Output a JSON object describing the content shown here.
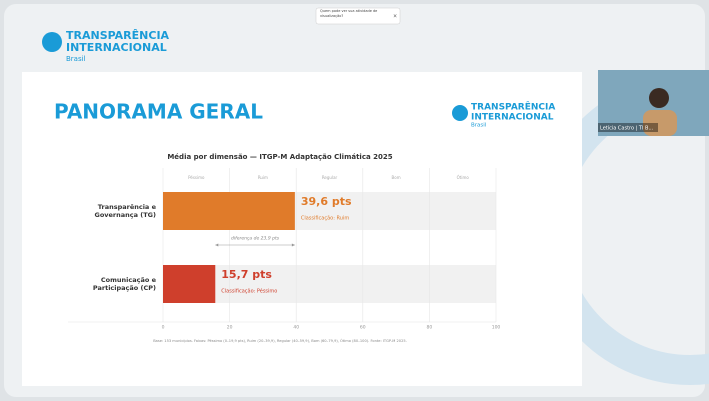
{
  "app": {
    "logo": {
      "name": "TRANSPARÊNCIA",
      "name2": "INTERNACIONAL",
      "country": "Brasil"
    },
    "notification": "Quem pode ver sua atividade de visualização?",
    "participant": "Letícia Castro | TI B..."
  },
  "slide": {
    "title": "PANORAMA GERAL",
    "logo": {
      "name": "TRANSPARÊNCIA",
      "name2": "INTERNACIONAL",
      "country": "Brasil"
    },
    "footnote": "Base: 153 municípios. Faixas: Péssimo (0–19,9 pts), Ruim (20–39,9), Regular (40–59,9), Bom (60–79,9), Ótimo (80–100). Fonte: ITGP-M 2025."
  },
  "chart_data": {
    "type": "hbar",
    "title": "Média por dimensão — ITGP-M Adaptação Climática 2025",
    "categories": [
      "Transparência e Governança (TG)",
      "Comunicação e Participação (CP)"
    ],
    "values": [
      39.6,
      15.7
    ],
    "value_labels": [
      "39,6 pts",
      "15,7 pts"
    ],
    "colors": [
      "#e07b2a",
      "#cf3f2c"
    ],
    "classification_labels": [
      "Classificação: Ruim",
      "Classificação: Péssimo"
    ],
    "bands": [
      "Péssimo",
      "Ruim",
      "Regular",
      "Bom",
      "Ótimo"
    ],
    "annotation": "diferença de 23,9 pts",
    "xlim": [
      0,
      100
    ],
    "xticks": [
      0,
      20,
      40,
      60,
      80,
      100
    ],
    "grid": true
  }
}
